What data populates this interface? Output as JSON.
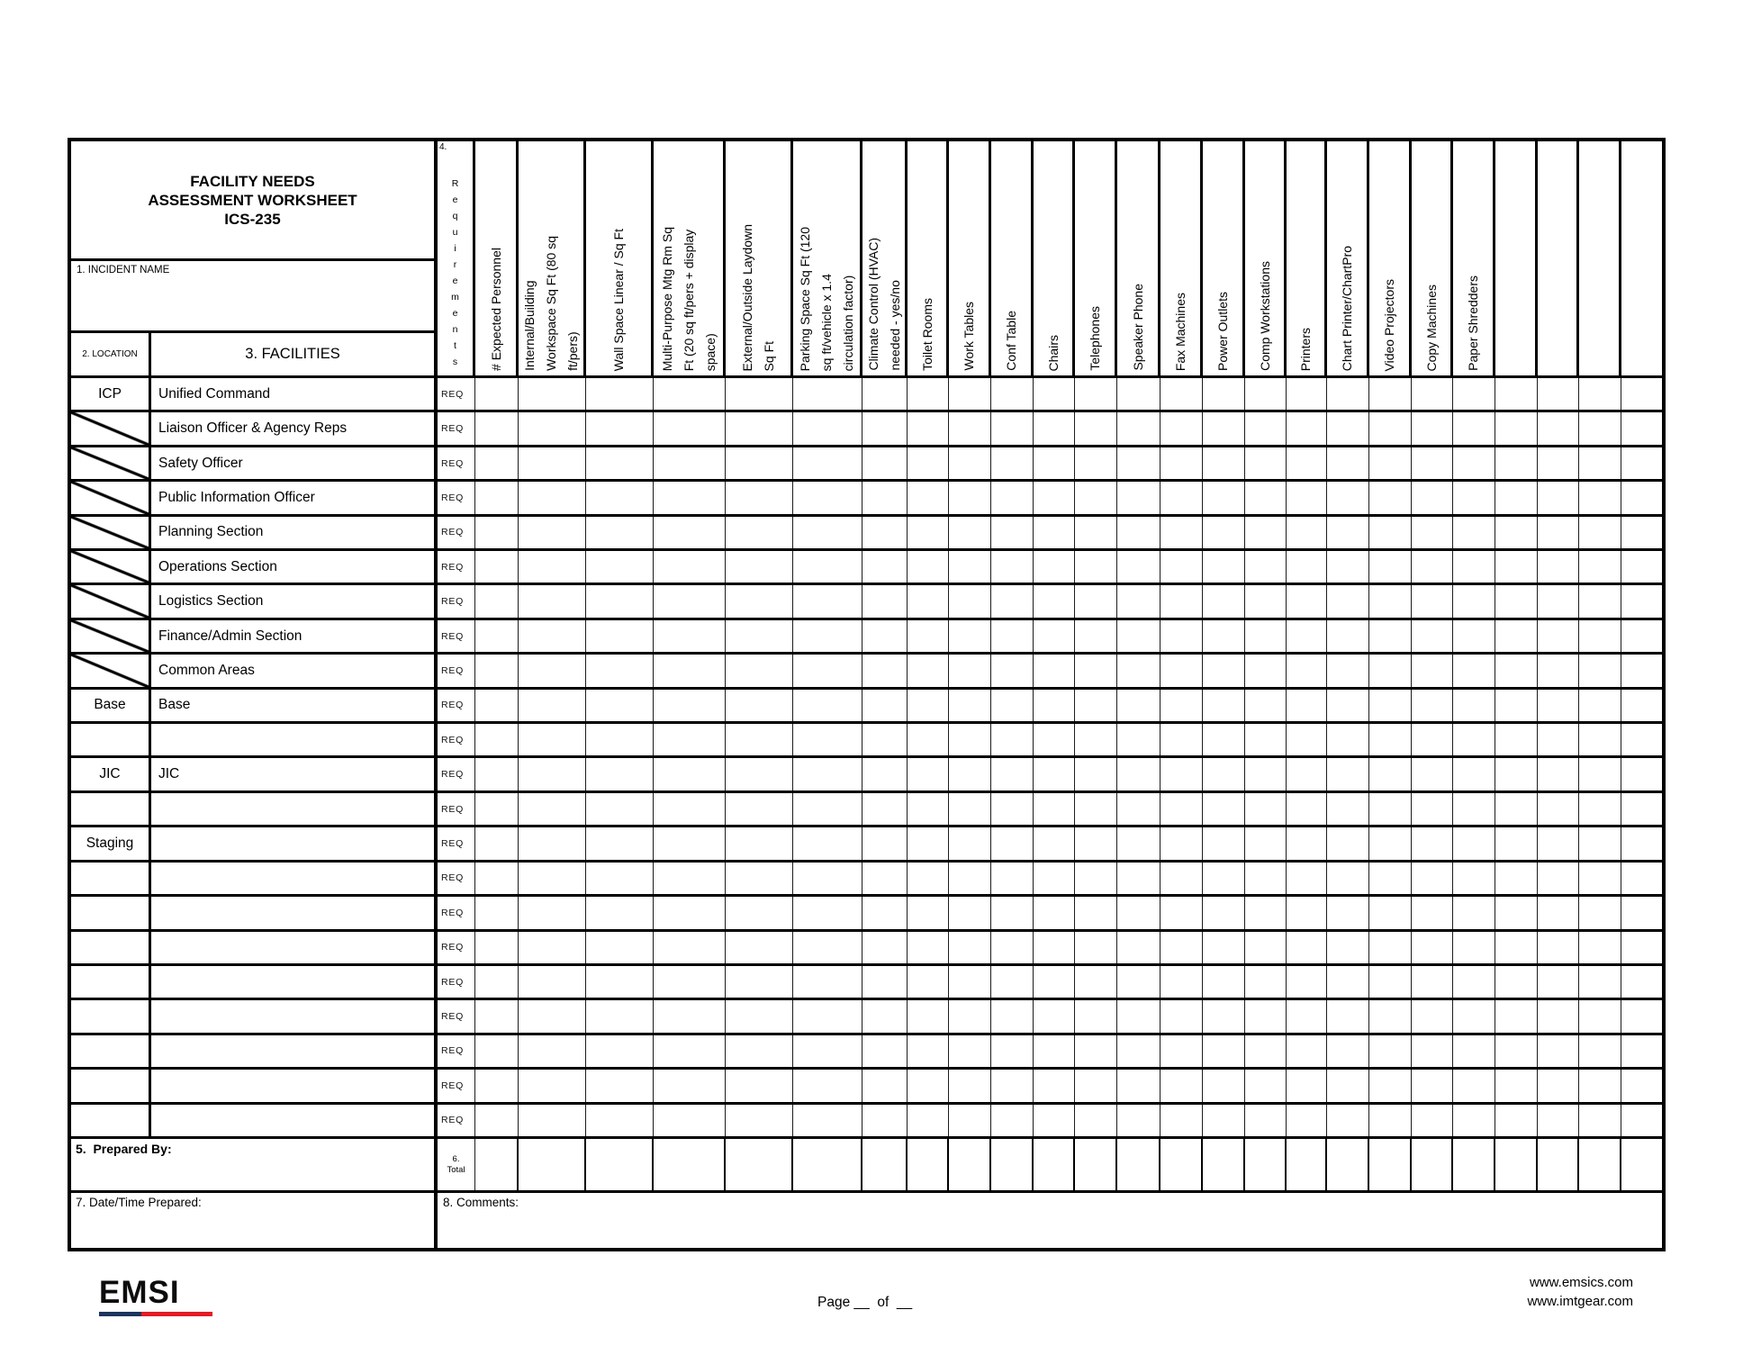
{
  "title": "FACILITY NEEDS\nASSESSMENT WORKSHEET\nICS-235",
  "fields": {
    "incident_name_label": "1. INCIDENT NAME",
    "location_label": "2. LOCATION",
    "facilities_label": "3. FACILITIES",
    "requirements_number": "4.",
    "requirements_word": "Requirements",
    "req_label": "REQ",
    "prepared_by_label": "5.  Prepared By:",
    "total_number": "6.",
    "total_word": "Total",
    "datetime_label": "7.  Date/Time Prepared:",
    "comments_label": "8.  Comments:"
  },
  "columns": [
    "# Expected Personnel",
    "Internal/Building\nWorkspace Sq Ft (80 sq\nft/pers)",
    "Wall Space Linear / Sq Ft",
    "Multi-Purpose Mtg Rm Sq\nFt (20 sq ft/pers + display\nspace)",
    "External/Outside Laydown\nSq Ft",
    "Parking Space Sq Ft (120\nsq ft/vehicle x 1.4\ncirculation factor)",
    "Climate Control (HVAC)\nneeded - yes/no",
    "Toilet Rooms",
    "Work Tables",
    "Conf Table",
    "Chairs",
    "Telephones",
    "Speaker Phone",
    "Fax Machines",
    "Power Outlets",
    "Comp Workstations",
    "Printers",
    "Chart Printer/ChartPro",
    "Video Projectors",
    "Copy Machines",
    "Paper Shredders",
    "",
    "",
    "",
    ""
  ],
  "rows": [
    {
      "location": "ICP",
      "facility": "Unified Command",
      "slash": false
    },
    {
      "location": "",
      "facility": "Liaison Officer & Agency Reps",
      "slash": true
    },
    {
      "location": "",
      "facility": "Safety Officer",
      "slash": true
    },
    {
      "location": "",
      "facility": "Public Information Officer",
      "slash": true
    },
    {
      "location": "",
      "facility": "Planning Section",
      "slash": true
    },
    {
      "location": "",
      "facility": "Operations Section",
      "slash": true
    },
    {
      "location": "",
      "facility": "Logistics Section",
      "slash": true
    },
    {
      "location": "",
      "facility": "Finance/Admin Section",
      "slash": true
    },
    {
      "location": "",
      "facility": "Common Areas",
      "slash": true
    },
    {
      "location": "Base",
      "facility": "Base",
      "slash": false
    },
    {
      "location": "",
      "facility": "",
      "slash": false
    },
    {
      "location": "JIC",
      "facility": "JIC",
      "slash": false
    },
    {
      "location": "",
      "facility": "",
      "slash": false
    },
    {
      "location": "Staging",
      "facility": "",
      "slash": false
    },
    {
      "location": "",
      "facility": "",
      "slash": false
    },
    {
      "location": "",
      "facility": "",
      "slash": false
    },
    {
      "location": "",
      "facility": "",
      "slash": false
    },
    {
      "location": "",
      "facility": "",
      "slash": false
    },
    {
      "location": "",
      "facility": "",
      "slash": false
    },
    {
      "location": "",
      "facility": "",
      "slash": false
    },
    {
      "location": "",
      "facility": "",
      "slash": false
    },
    {
      "location": "",
      "facility": "",
      "slash": false
    }
  ],
  "footer": {
    "logo": "EMSI",
    "logo_bar": {
      "navy": "#1c355e",
      "red": "#e31b23"
    },
    "page_text": "Page __  of  __",
    "site1": "www.emsics.com",
    "site2": "www.imtgear.com"
  }
}
